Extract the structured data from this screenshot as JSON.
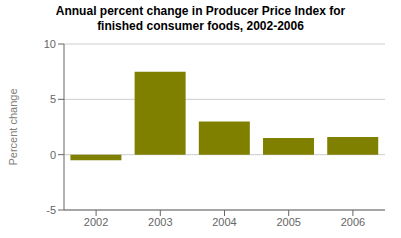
{
  "chart_data": {
    "type": "bar",
    "title": "Annual percent change in Producer Price Index for\nfinished consumer foods, 2002-2006",
    "ylabel": "Percent change",
    "categories": [
      "2002",
      "2003",
      "2004",
      "2005",
      "2006"
    ],
    "values": [
      -0.5,
      7.5,
      3.0,
      1.5,
      1.6
    ],
    "color": "#808000",
    "ylim": [
      -5,
      10
    ],
    "yticks": [
      -5,
      0,
      5,
      10
    ],
    "grid": true
  }
}
